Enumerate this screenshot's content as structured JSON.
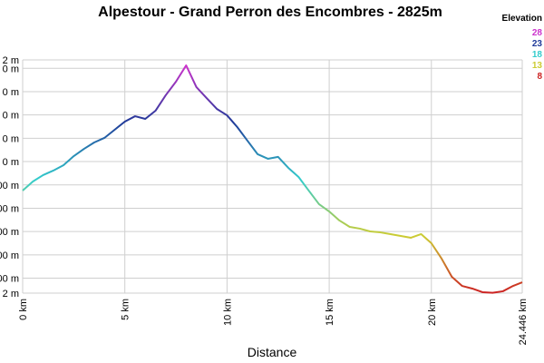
{
  "chart_data": {
    "type": "line",
    "title": "Alpestour - Grand Perron des Encombres - 2825m",
    "x_label": "Distance",
    "x": [
      0,
      0.5,
      1,
      1.5,
      2,
      2.5,
      3,
      3.5,
      4,
      4.5,
      5,
      5.5,
      6,
      6.5,
      7,
      7.5,
      8,
      8.5,
      9,
      9.5,
      10,
      10.5,
      11,
      11.5,
      12,
      12.5,
      13,
      13.5,
      14,
      14.5,
      15,
      15.5,
      16,
      16.5,
      17,
      17.5,
      18,
      18.5,
      19,
      19.5,
      20,
      20.5,
      21,
      21.5,
      22,
      22.5,
      23,
      23.5,
      24,
      24.446
    ],
    "series": [
      {
        "name": "Elevation",
        "values": [
          1751,
          1829,
          1884,
          1923,
          1969,
          2047,
          2109,
          2164,
          2203,
          2273,
          2343,
          2389,
          2366,
          2436,
          2569,
          2685,
          2825,
          2639,
          2545,
          2452,
          2397,
          2296,
          2179,
          2063,
          2024,
          2040,
          1946,
          1868,
          1751,
          1635,
          1572,
          1495,
          1440,
          1425,
          1401,
          1393,
          1378,
          1362,
          1347,
          1378,
          1300,
          1168,
          1012,
          934,
          911,
          880,
          875,
          888,
          934,
          965
        ]
      }
    ],
    "xlim": [
      0,
      24.446
    ],
    "xticks": [
      {
        "value": 0,
        "label": "0 km"
      },
      {
        "value": 5,
        "label": "5 km"
      },
      {
        "value": 10,
        "label": "10 km"
      },
      {
        "value": 15,
        "label": "15 km"
      },
      {
        "value": 20,
        "label": "20 km"
      },
      {
        "value": 24.446,
        "label": "24.446 km"
      }
    ],
    "ylim": [
      872,
      2872
    ],
    "yticks": [
      {
        "value": 872,
        "label": "2 m"
      },
      {
        "value": 1000,
        "label": "00 m"
      },
      {
        "value": 1200,
        "label": "00 m"
      },
      {
        "value": 1400,
        "label": "00 m"
      },
      {
        "value": 1600,
        "label": "00 m"
      },
      {
        "value": 1800,
        "label": "00 m"
      },
      {
        "value": 2000,
        "label": "0 m"
      },
      {
        "value": 2200,
        "label": "0 m"
      },
      {
        "value": 2400,
        "label": "0 m"
      },
      {
        "value": 2600,
        "label": "0 m"
      },
      {
        "value": 2800,
        "label": "0 m"
      },
      {
        "value": 2872,
        "label": "2 m"
      }
    ],
    "grid": true,
    "legend": {
      "title": "Elevation",
      "items": [
        {
          "label": "28",
          "color": "#cc33cc"
        },
        {
          "label": "23",
          "color": "#1f3a99"
        },
        {
          "label": "18",
          "color": "#33cccc"
        },
        {
          "label": "13",
          "color": "#cccc33"
        },
        {
          "label": "8",
          "color": "#cc2222"
        }
      ]
    }
  }
}
